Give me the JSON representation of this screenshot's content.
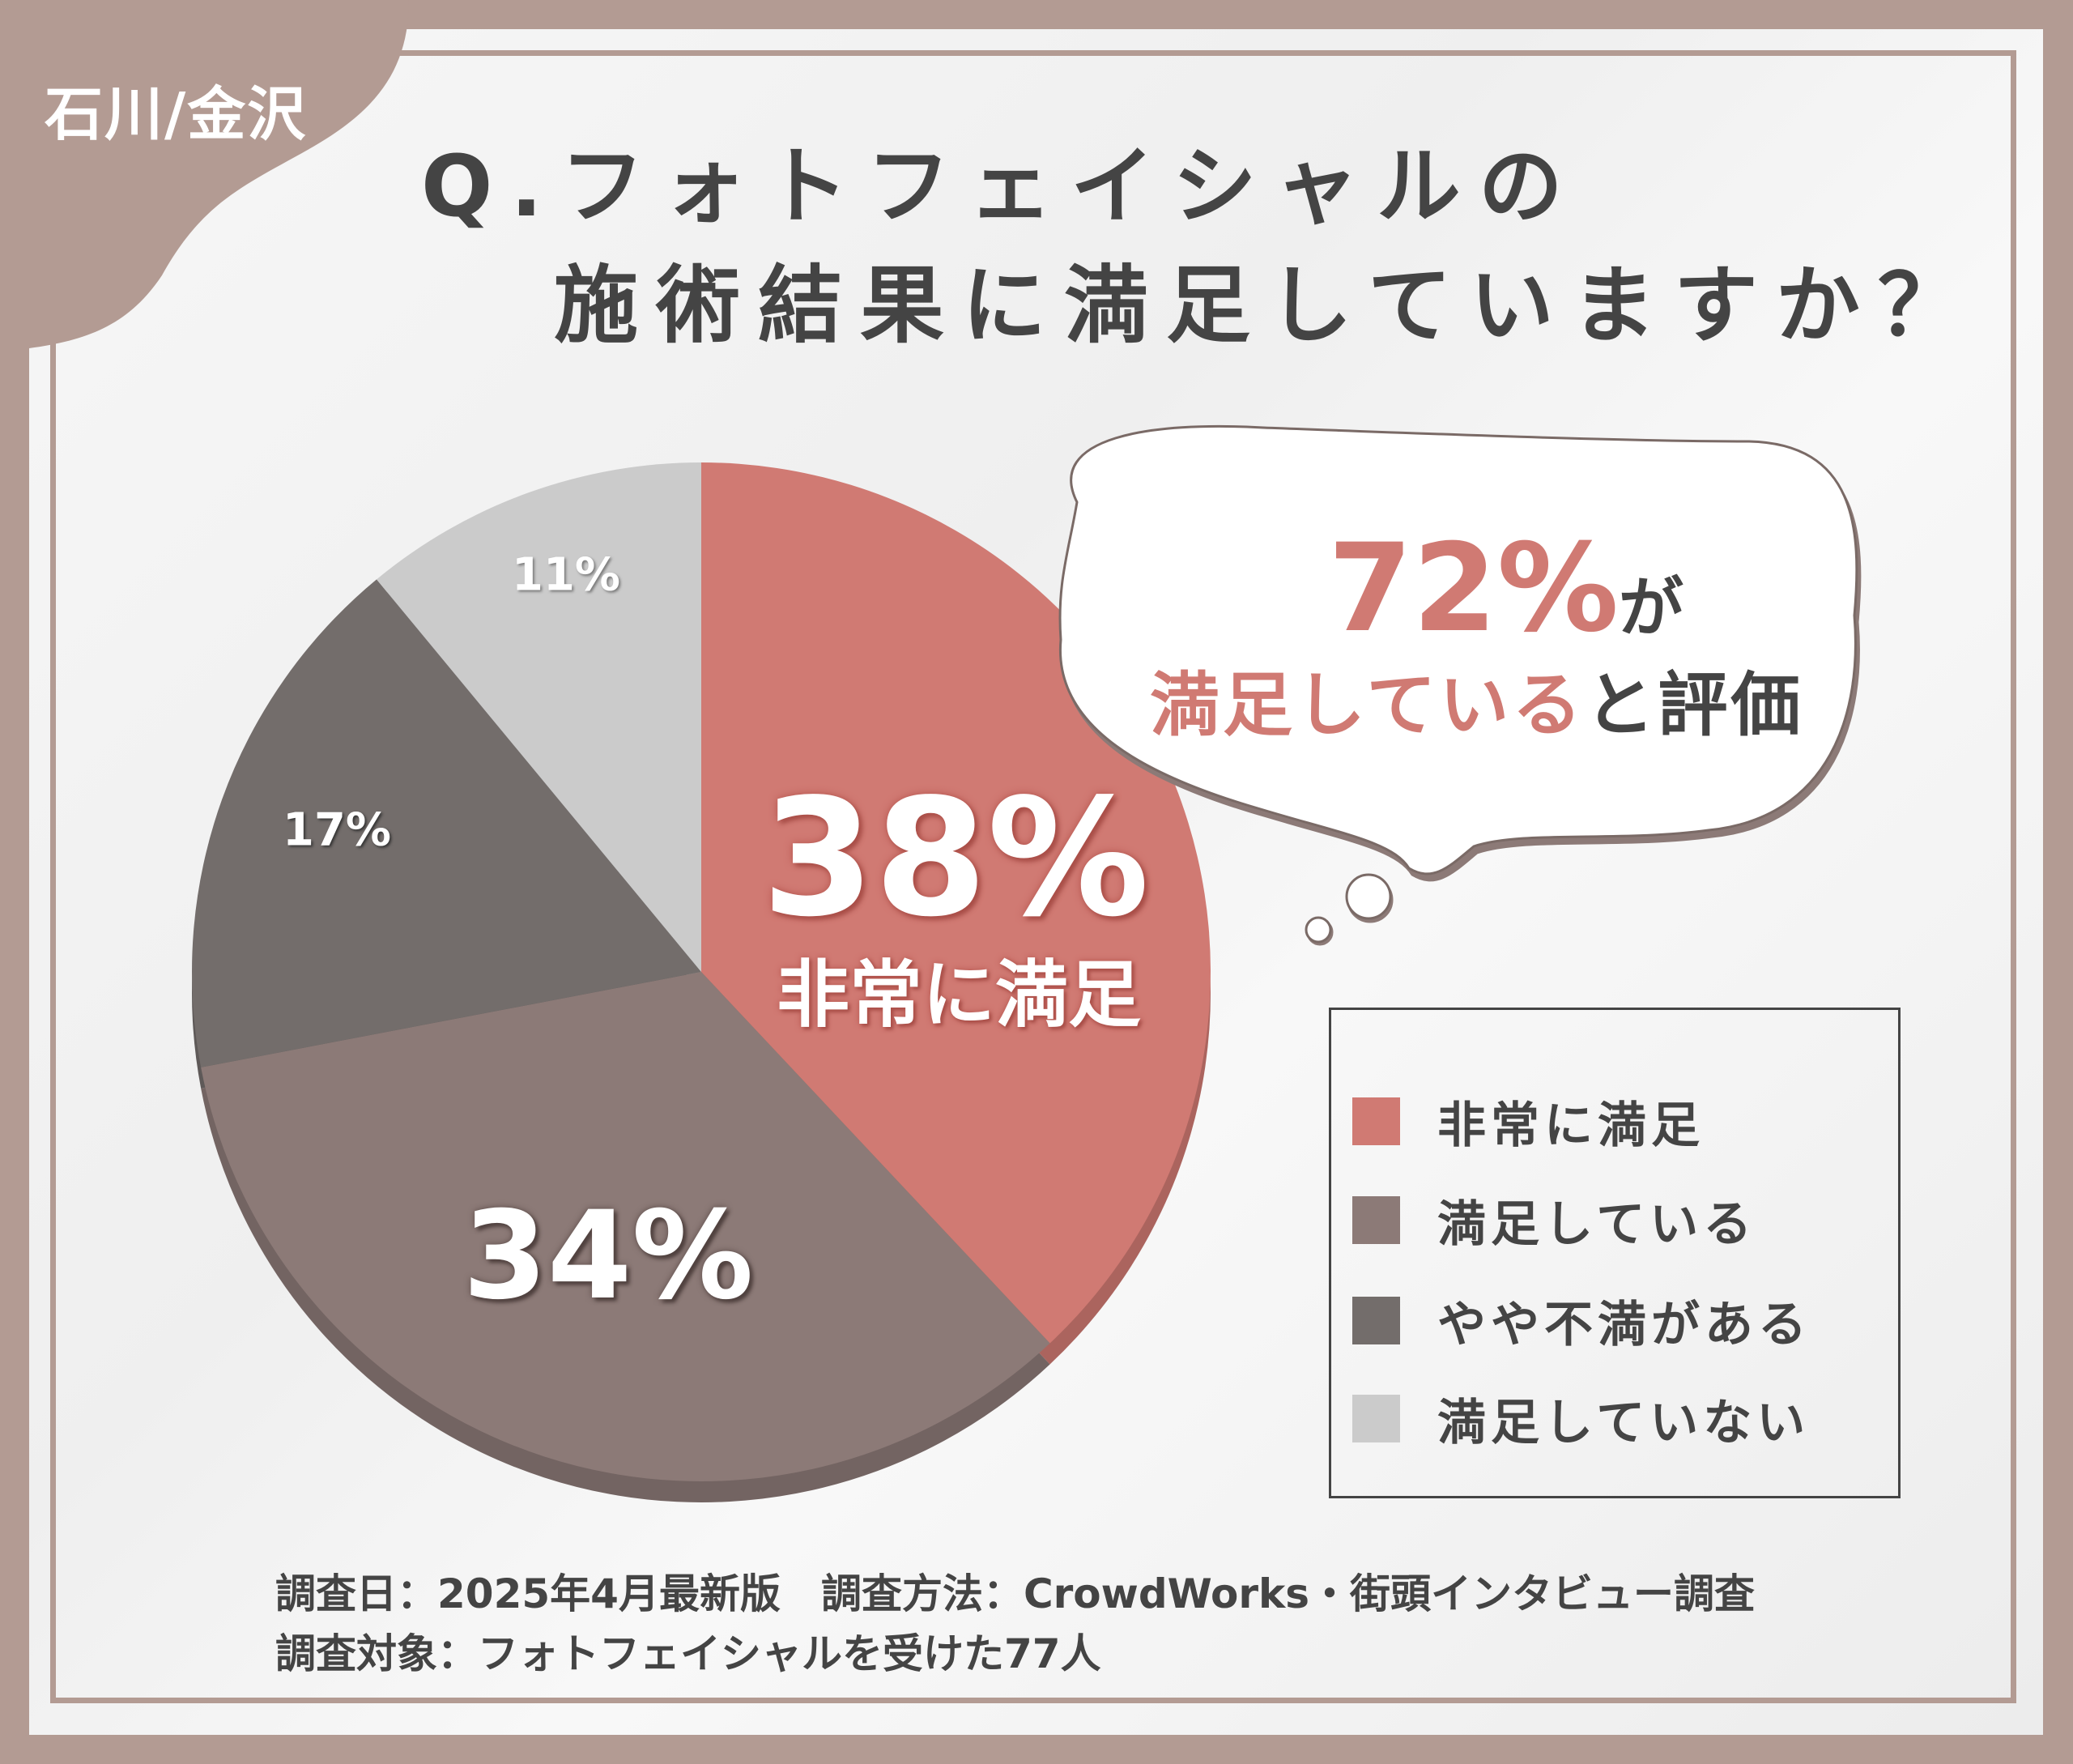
{
  "badge": "石川/金沢",
  "title": {
    "line1": "Q.フォトフェイシャルの",
    "line2": "施術結果に満足していますか？"
  },
  "callout": {
    "value": "72%",
    "particle": "が",
    "highlight": "満足している",
    "rest": "と評価"
  },
  "chart_data": {
    "type": "pie",
    "categories": [
      "非常に満足",
      "満足している",
      "やや不満がある",
      "満足していない"
    ],
    "values": [
      38,
      34,
      17,
      11
    ],
    "labels": [
      "38%",
      "34%",
      "17%",
      "11%"
    ],
    "inner_label": "非常に満足",
    "colors": [
      "#d07a73",
      "#8c7a77",
      "#736d6b",
      "#cbcbcb"
    ],
    "start": "12 o'clock, clockwise",
    "legend": "right"
  },
  "footer": {
    "line1": "調査日：2025年4月最新版　調査方法：CrowdWorks・街頭インタビュー調査",
    "line2": "調査対象：フォトフェイシャルを受けた77人"
  }
}
